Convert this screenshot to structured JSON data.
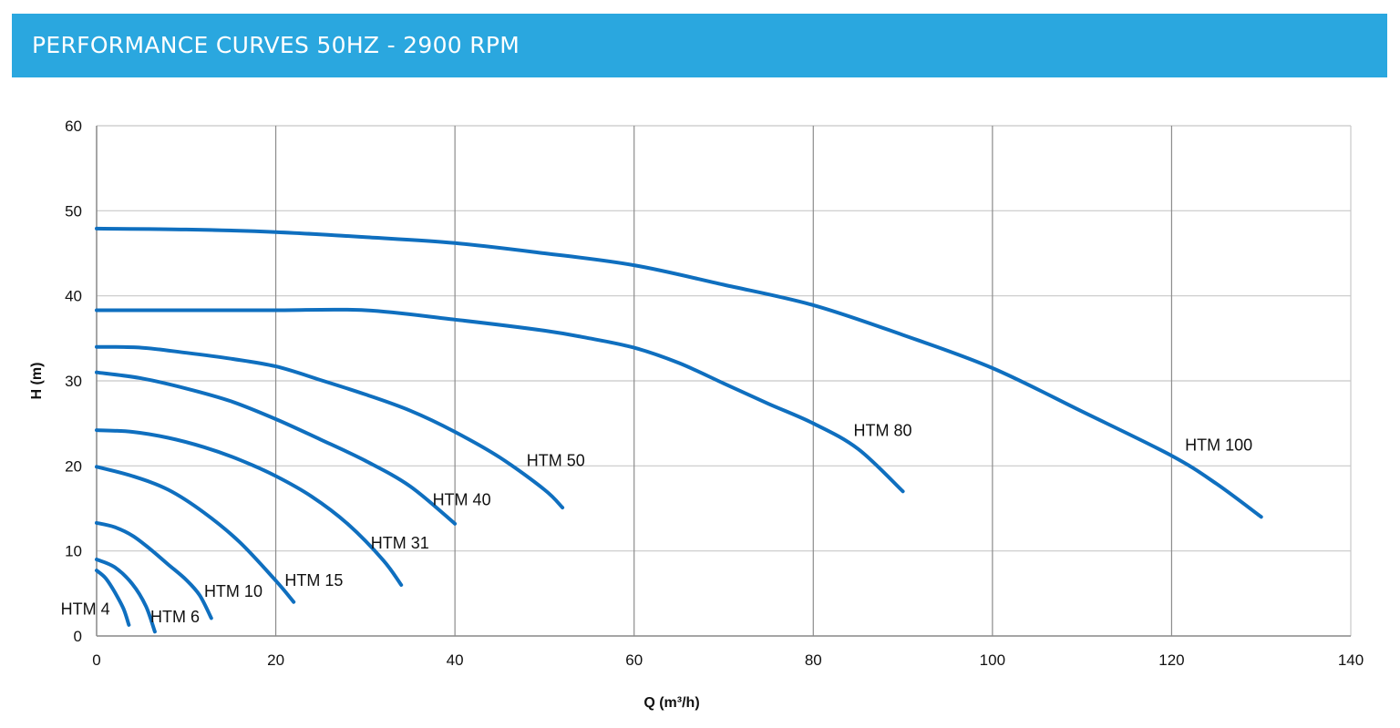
{
  "header": {
    "title": "PERFORMANCE CURVES 50HZ - 2900 RPM"
  },
  "colors": {
    "header_bg": "#2aa7df",
    "curve": "#0f6fbf",
    "grid": "#c8c8c8"
  },
  "chart_data": {
    "type": "line",
    "title": "PERFORMANCE CURVES 50HZ - 2900 RPM",
    "xlabel": "Q (m³/h)",
    "ylabel": "H (m)",
    "xlim": [
      0,
      140
    ],
    "ylim": [
      0,
      60
    ],
    "xticks": [
      "0",
      "20",
      "40",
      "60",
      "80",
      "100",
      "120",
      "140"
    ],
    "yticks": [
      "0",
      "10",
      "20",
      "30",
      "40",
      "50",
      "60"
    ],
    "grid": true,
    "legend": "none",
    "series": [
      {
        "name": "HTM 4",
        "points": [
          [
            0,
            7.7
          ],
          [
            1,
            6.8
          ],
          [
            2,
            5.2
          ],
          [
            3,
            3.2
          ],
          [
            3.6,
            1.3
          ]
        ]
      },
      {
        "name": "HTM 6",
        "points": [
          [
            0,
            9
          ],
          [
            2,
            8.1
          ],
          [
            4,
            6.1
          ],
          [
            5.5,
            3.5
          ],
          [
            6.5,
            0.5
          ]
        ]
      },
      {
        "name": "HTM 10",
        "points": [
          [
            0,
            13.3
          ],
          [
            2,
            12.8
          ],
          [
            4,
            11.8
          ],
          [
            6,
            10.2
          ],
          [
            8,
            8.4
          ],
          [
            10,
            6.6
          ],
          [
            11.5,
            4.8
          ],
          [
            12.8,
            2.1
          ]
        ]
      },
      {
        "name": "HTM 15",
        "points": [
          [
            0,
            19.9
          ],
          [
            4,
            18.8
          ],
          [
            8,
            17.2
          ],
          [
            12,
            14.5
          ],
          [
            16,
            11
          ],
          [
            20,
            6.5
          ],
          [
            22,
            4
          ]
        ]
      },
      {
        "name": "HTM 31",
        "points": [
          [
            0,
            24.2
          ],
          [
            4,
            24
          ],
          [
            8,
            23.3
          ],
          [
            12,
            22.2
          ],
          [
            16,
            20.7
          ],
          [
            20,
            18.8
          ],
          [
            24,
            16.4
          ],
          [
            28,
            13.2
          ],
          [
            32,
            8.9
          ],
          [
            34,
            6
          ]
        ]
      },
      {
        "name": "HTM 40",
        "points": [
          [
            0,
            31
          ],
          [
            5,
            30.3
          ],
          [
            10,
            29.1
          ],
          [
            15,
            27.6
          ],
          [
            20,
            25.5
          ],
          [
            25,
            23.1
          ],
          [
            30,
            20.6
          ],
          [
            35,
            17.6
          ],
          [
            40,
            13.2
          ]
        ]
      },
      {
        "name": "HTM 50",
        "points": [
          [
            0,
            34
          ],
          [
            5,
            33.9
          ],
          [
            10,
            33.3
          ],
          [
            15,
            32.6
          ],
          [
            20,
            31.7
          ],
          [
            25,
            30.1
          ],
          [
            30,
            28.4
          ],
          [
            35,
            26.5
          ],
          [
            40,
            24
          ],
          [
            45,
            21
          ],
          [
            50,
            17.2
          ],
          [
            52,
            15.1
          ]
        ]
      },
      {
        "name": "HTM 80",
        "points": [
          [
            0,
            38.3
          ],
          [
            10,
            38.3
          ],
          [
            20,
            38.3
          ],
          [
            30,
            38.3
          ],
          [
            40,
            37.2
          ],
          [
            50,
            35.9
          ],
          [
            55,
            35
          ],
          [
            60,
            33.9
          ],
          [
            65,
            32.1
          ],
          [
            70,
            29.7
          ],
          [
            75,
            27.3
          ],
          [
            80,
            25
          ],
          [
            85,
            22
          ],
          [
            90,
            17
          ]
        ]
      },
      {
        "name": "HTM 100",
        "points": [
          [
            0,
            47.9
          ],
          [
            10,
            47.8
          ],
          [
            20,
            47.5
          ],
          [
            30,
            46.9
          ],
          [
            40,
            46.2
          ],
          [
            50,
            45
          ],
          [
            60,
            43.6
          ],
          [
            70,
            41.3
          ],
          [
            80,
            38.9
          ],
          [
            90,
            35.4
          ],
          [
            100,
            31.5
          ],
          [
            110,
            26.4
          ],
          [
            120,
            21.2
          ],
          [
            125,
            17.9
          ],
          [
            130,
            14
          ]
        ]
      }
    ],
    "labels": [
      {
        "text": "HTM 4",
        "x": -4,
        "y": 2.5
      },
      {
        "text": "HTM 6",
        "x": 6,
        "y": 1.6
      },
      {
        "text": "HTM 10",
        "x": 12,
        "y": 4.6
      },
      {
        "text": "HTM 15",
        "x": 21,
        "y": 5.9
      },
      {
        "text": "HTM 31",
        "x": 30.6,
        "y": 10.3
      },
      {
        "text": "HTM 40",
        "x": 37.5,
        "y": 15.4
      },
      {
        "text": "HTM 50",
        "x": 48,
        "y": 20
      },
      {
        "text": "HTM 80",
        "x": 84.5,
        "y": 23.5
      },
      {
        "text": "HTM 100",
        "x": 121.5,
        "y": 21.8
      }
    ]
  }
}
